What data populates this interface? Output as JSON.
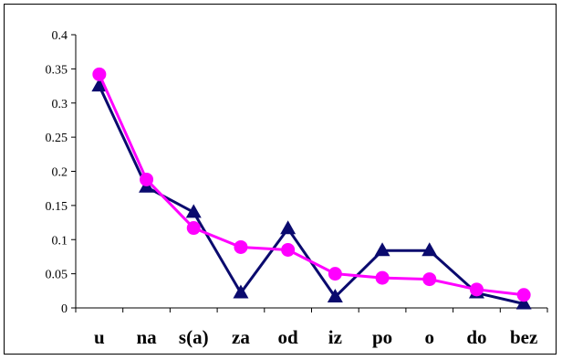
{
  "chart_data": {
    "type": "line",
    "title": "",
    "xlabel": "",
    "ylabel": "",
    "ylim": [
      0,
      0.4
    ],
    "yticks": [
      0,
      0.05,
      0.1,
      0.15,
      0.2,
      0.25,
      0.3,
      0.35,
      0.4
    ],
    "ytick_labels": [
      "0",
      "0.05",
      "0.1",
      "0.15",
      "0.2",
      "0.25",
      "0.3",
      "0.35",
      "0.4"
    ],
    "categories": [
      "u",
      "na",
      "s(a)",
      "za",
      "od",
      "iz",
      "po",
      "o",
      "do",
      "bez"
    ],
    "grid": false,
    "legend": "none",
    "series": [
      {
        "marker": "triangle",
        "color": "#0a0a6e",
        "values": [
          0.325,
          0.177,
          0.14,
          0.022,
          0.116,
          0.016,
          0.084,
          0.084,
          0.022,
          0.006
        ]
      },
      {
        "marker": "circle",
        "color": "#ff00ff",
        "values": [
          0.342,
          0.188,
          0.117,
          0.089,
          0.085,
          0.05,
          0.044,
          0.042,
          0.027,
          0.019
        ]
      }
    ]
  }
}
